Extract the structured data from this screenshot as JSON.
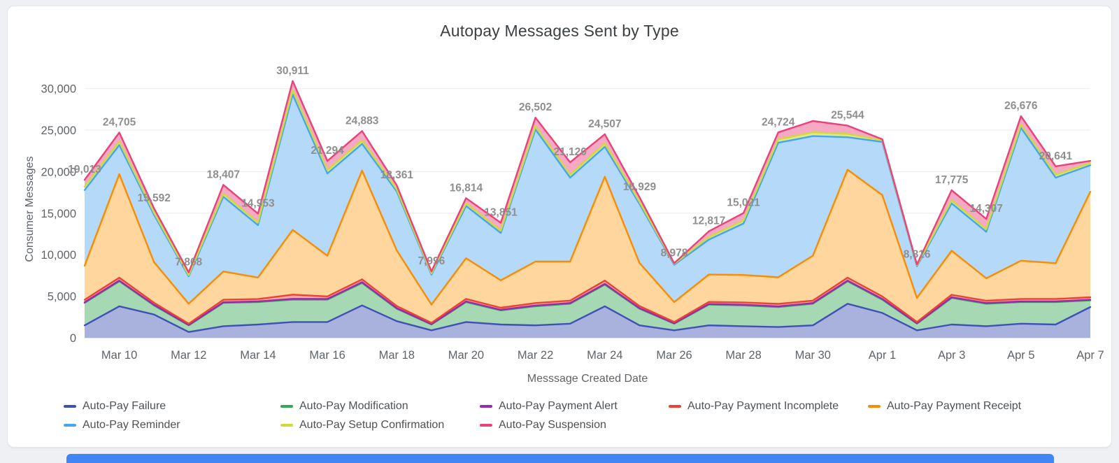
{
  "chart": {
    "y_ticks": [
      "0",
      "5,000",
      "10,000",
      "15,000",
      "20,000",
      "25,000",
      "30,000"
    ],
    "y_tick_values": [
      0,
      5000,
      10000,
      15000,
      20000,
      25000,
      30000
    ],
    "y_axis_max": 33000
  },
  "chart_data": {
    "type": "area",
    "stacked": true,
    "title": "Autopay Messages Sent by Type",
    "xlabel": "Messsage Created Date",
    "ylabel": "Consumer Messages",
    "ylim": [
      0,
      30000
    ],
    "grid": "horizontal",
    "legend_position": "bottom",
    "x": [
      "Mar 9",
      "Mar 10",
      "Mar 11",
      "Mar 12",
      "Mar 13",
      "Mar 14",
      "Mar 15",
      "Mar 16",
      "Mar 17",
      "Mar 18",
      "Mar 19",
      "Mar 20",
      "Mar 21",
      "Mar 22",
      "Mar 23",
      "Mar 24",
      "Mar 25",
      "Mar 26",
      "Mar 27",
      "Mar 28",
      "Mar 29",
      "Mar 30",
      "Mar 31",
      "Apr 1",
      "Apr 2",
      "Apr 3",
      "Apr 4",
      "Apr 5",
      "Apr 6",
      "Apr 7"
    ],
    "x_tick_labels": [
      "Mar 10",
      "Mar 12",
      "Mar 14",
      "Mar 16",
      "Mar 18",
      "Mar 20",
      "Mar 22",
      "Mar 24",
      "Mar 26",
      "Mar 28",
      "Mar 30",
      "Apr 1",
      "Apr 3",
      "Apr 5",
      "Apr 7"
    ],
    "series": [
      {
        "name": "Auto-Pay Failure",
        "color": "#3f51b5",
        "fill": "#a9b1dd",
        "values": [
          1500,
          3800,
          2800,
          700,
          1400,
          1600,
          1900,
          1900,
          3900,
          2000,
          900,
          1900,
          1600,
          1500,
          1700,
          3800,
          1500,
          900,
          1500,
          1400,
          1300,
          1500,
          4100,
          3000,
          900,
          1600,
          1400,
          1700,
          1600,
          3700
        ]
      },
      {
        "name": "Auto-Pay Modification",
        "color": "#34a853",
        "fill": "#a5d8b3",
        "values": [
          2700,
          3000,
          1100,
          800,
          2800,
          2700,
          2700,
          2700,
          2700,
          1500,
          700,
          2400,
          1700,
          2300,
          2400,
          2600,
          2000,
          800,
          2500,
          2500,
          2400,
          2600,
          2700,
          1600,
          800,
          3200,
          2700,
          2600,
          2700,
          800
        ]
      },
      {
        "name": "Auto-Pay Payment Alert",
        "color": "#9c27b0",
        "fill": "#d29edb",
        "values": [
          80,
          90,
          70,
          50,
          80,
          80,
          90,
          80,
          90,
          70,
          50,
          80,
          70,
          80,
          80,
          90,
          70,
          50,
          70,
          80,
          80,
          80,
          90,
          80,
          50,
          80,
          80,
          80,
          80,
          80
        ]
      },
      {
        "name": "Auto-Pay Payment Incomplete",
        "color": "#ea4335",
        "fill": "#f5aaa4",
        "values": [
          300,
          350,
          250,
          150,
          300,
          280,
          500,
          300,
          350,
          250,
          150,
          300,
          250,
          300,
          300,
          400,
          250,
          150,
          250,
          280,
          300,
          300,
          350,
          300,
          150,
          300,
          280,
          300,
          300,
          300
        ]
      },
      {
        "name": "Auto-Pay Payment Receipt",
        "color": "#fb8c00",
        "fill": "#ffd79e",
        "values": [
          4100,
          12460,
          4900,
          2400,
          3400,
          2600,
          7800,
          4900,
          13100,
          6700,
          2200,
          4900,
          3300,
          5000,
          4700,
          12500,
          5200,
          2400,
          3300,
          3300,
          3200,
          5400,
          13000,
          12200,
          2900,
          5300,
          2700,
          4600,
          4300,
          12700
        ]
      },
      {
        "name": "Auto-Pay Reminder",
        "color": "#42a5f5",
        "fill": "#b5d9f8",
        "values": [
          9100,
          3500,
          5700,
          3300,
          9000,
          6300,
          16300,
          9900,
          3200,
          7100,
          3600,
          6300,
          5700,
          15900,
          10100,
          3600,
          7100,
          4500,
          4200,
          6200,
          16200,
          14400,
          3900,
          6400,
          3800,
          5700,
          5600,
          16000,
          10300,
          3200
        ]
      },
      {
        "name": "Auto-Pay Setup Confirmation",
        "color": "#cddc39",
        "fill": "#e1ea88",
        "values": [
          400,
          400,
          250,
          150,
          350,
          320,
          500,
          400,
          400,
          250,
          150,
          300,
          280,
          350,
          350,
          400,
          250,
          120,
          300,
          350,
          400,
          450,
          400,
          200,
          120,
          350,
          320,
          350,
          350,
          250
        ]
      },
      {
        "name": "Auto-Pay Suspension",
        "color": "#ec407a",
        "fill": "#f6a9c3",
        "values": [
          833,
          1105,
          522,
          318,
          1077,
          1073,
          1121,
          1114,
          1143,
          491,
          246,
          634,
          951,
          1072,
          1490,
          1117,
          559,
          58,
          697,
          911,
          844,
          1370,
          1004,
          120,
          96,
          1245,
          1227,
          1046,
          1011,
          270
        ]
      }
    ],
    "totals": [
      19013,
      24705,
      15592,
      7868,
      18407,
      14953,
      30911,
      21294,
      24883,
      18361,
      7996,
      16814,
      13851,
      26502,
      21120,
      24507,
      16929,
      8978,
      12817,
      15021,
      24724,
      26100,
      25544,
      23900,
      8816,
      17775,
      14307,
      26676,
      20641,
      21300
    ],
    "total_labels": [
      "19,013",
      "24,705",
      "15,592",
      "7,868",
      "18,407",
      "14,953",
      "30,911",
      "21,294",
      "24,883",
      "18,361",
      "7,996",
      "16,814",
      "13,851",
      "26,502",
      "21,120",
      "24,507",
      "16,929",
      "8,978",
      "12,817",
      "15,021",
      "24,724",
      "",
      "25,544",
      "",
      "8,816",
      "17,775",
      "14,307",
      "26,676",
      "20,641",
      ""
    ]
  }
}
